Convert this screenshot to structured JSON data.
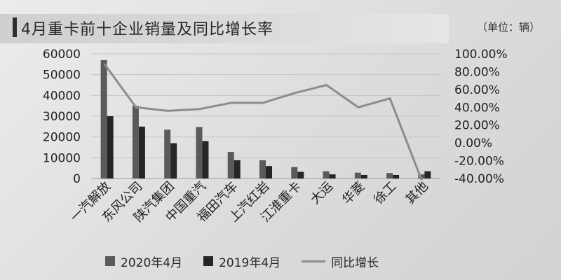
{
  "chart_title": "4月重卡前十企业销量及同比增长率",
  "unit_label": "（单位：辆）",
  "colors": {
    "bar_2020": "#5a5a5a",
    "bar_2019": "#262626",
    "growth_line": "#8c8c8c"
  },
  "chart_data": {
    "type": "bar",
    "categories": [
      "一汽解放",
      "东风公司",
      "陕汽集团",
      "中国重汽",
      "福田汽车",
      "上汽红岩",
      "江淮重卡",
      "大运",
      "华菱",
      "徐工",
      "其他"
    ],
    "series": [
      {
        "name": "2020年4月",
        "type": "bar",
        "values": [
          57000,
          35000,
          23500,
          24800,
          12800,
          8800,
          5500,
          3500,
          2800,
          2600,
          2000
        ]
      },
      {
        "name": "2019年4月",
        "type": "bar",
        "values": [
          30000,
          25000,
          17000,
          18000,
          8800,
          6000,
          3200,
          2000,
          1700,
          1700,
          3500
        ]
      },
      {
        "name": "同比增长",
        "type": "line",
        "axis": "right",
        "values": [
          89,
          40,
          36,
          38,
          45,
          45,
          56,
          65,
          40,
          50,
          -42
        ]
      }
    ],
    "y_left": {
      "ylim": [
        0,
        60000
      ],
      "ticks": [
        "0",
        "10000",
        "20000",
        "30000",
        "40000",
        "50000",
        "60000"
      ]
    },
    "y_right": {
      "ylim": [
        -40,
        100
      ],
      "unit": "%",
      "ticks": [
        "-40.00%",
        "-20.00%",
        "0.00%",
        "20.00%",
        "40.00%",
        "60.00%",
        "80.00%",
        "100.00%"
      ]
    },
    "grid": "horizontal",
    "legend_position": "bottom"
  }
}
